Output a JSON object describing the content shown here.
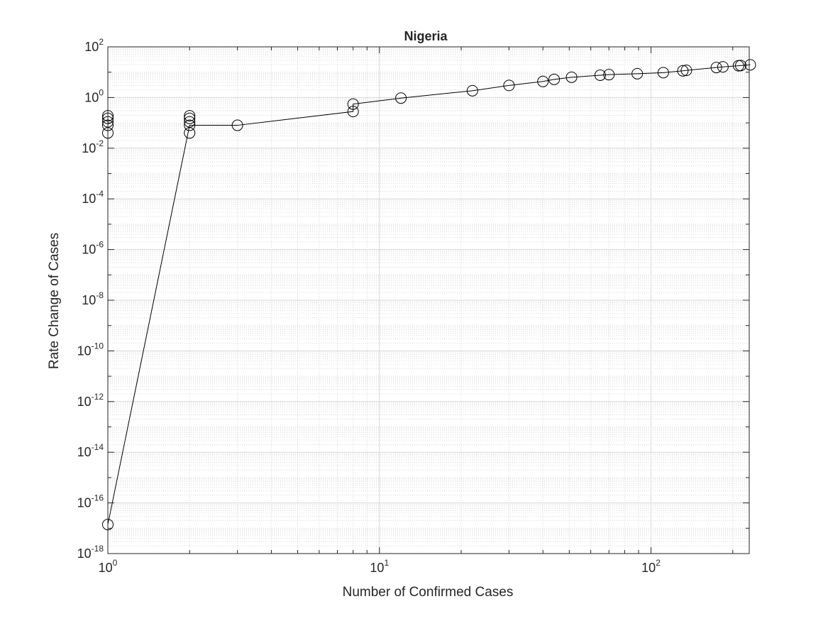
{
  "chart_data": {
    "type": "scatter",
    "title": "Nigeria",
    "xlabel": "Number of Confirmed Cases",
    "ylabel": "Rate Change of Cases",
    "x_scale": "log",
    "y_scale": "log",
    "xlim": [
      1,
      230
    ],
    "ylim": [
      1e-18,
      100
    ],
    "grid": true,
    "marker": "open-circle",
    "colors": {
      "line": "#000000",
      "grid": "#d9d9d9",
      "axis": "#262626"
    },
    "x_ticks": [
      {
        "base": "10",
        "exp": "0",
        "value": 1
      },
      {
        "base": "10",
        "exp": "1",
        "value": 10
      },
      {
        "base": "10",
        "exp": "2",
        "value": 100
      }
    ],
    "y_ticks": [
      {
        "base": "10",
        "exp": "-18",
        "value": 1e-18
      },
      {
        "base": "10",
        "exp": "-16",
        "value": 1e-16
      },
      {
        "base": "10",
        "exp": "-14",
        "value": 1e-14
      },
      {
        "base": "10",
        "exp": "-12",
        "value": 1e-12
      },
      {
        "base": "10",
        "exp": "-10",
        "value": 1e-10
      },
      {
        "base": "10",
        "exp": "-8",
        "value": 1e-08
      },
      {
        "base": "10",
        "exp": "-6",
        "value": 1e-06
      },
      {
        "base": "10",
        "exp": "-4",
        "value": 0.0001
      },
      {
        "base": "10",
        "exp": "-2",
        "value": 0.01
      },
      {
        "base": "10",
        "exp": "0",
        "value": 1
      },
      {
        "base": "10",
        "exp": "2",
        "value": 100
      }
    ],
    "series": [
      {
        "x": [
          1,
          1,
          1,
          1,
          1,
          1,
          2,
          2,
          2,
          2,
          2,
          3,
          8,
          8,
          12,
          22,
          30,
          40,
          44,
          51,
          65,
          70,
          89,
          111,
          131,
          135,
          174,
          184,
          210,
          214,
          232
        ],
        "y": [
          1.4e-17,
          0.04,
          0.08,
          0.11,
          0.15,
          0.19,
          0.04,
          0.08,
          0.11,
          0.15,
          0.19,
          0.08,
          0.28,
          0.55,
          0.95,
          1.85,
          3.0,
          4.3,
          5.2,
          6.3,
          7.6,
          8.0,
          8.7,
          9.6,
          11.3,
          11.8,
          15.3,
          16.2,
          18.0,
          18.3,
          19.5
        ],
        "line": [
          [
            1,
            1.4e-17
          ],
          [
            2,
            0.08
          ],
          [
            3,
            0.08
          ],
          [
            8,
            0.28
          ],
          [
            8,
            0.55
          ],
          [
            12,
            0.95
          ],
          [
            22,
            1.85
          ],
          [
            30,
            3.0
          ],
          [
            40,
            4.3
          ],
          [
            44,
            5.2
          ],
          [
            51,
            6.3
          ],
          [
            65,
            7.6
          ],
          [
            70,
            8.0
          ],
          [
            89,
            8.7
          ],
          [
            111,
            9.6
          ],
          [
            131,
            11.3
          ],
          [
            135,
            11.8
          ],
          [
            174,
            15.3
          ],
          [
            184,
            16.2
          ],
          [
            210,
            18.0
          ],
          [
            214,
            18.3
          ],
          [
            232,
            19.5
          ]
        ]
      }
    ]
  }
}
